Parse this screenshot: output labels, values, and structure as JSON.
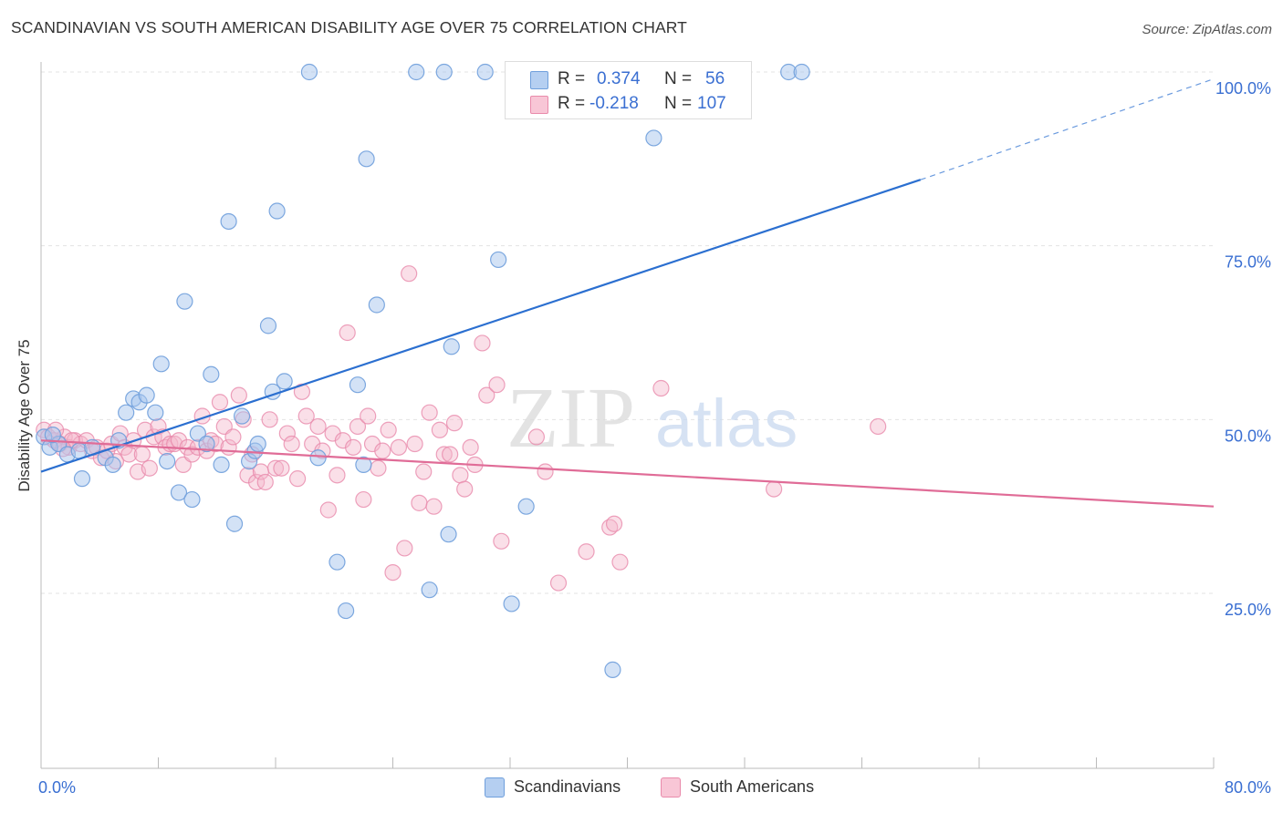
{
  "header": {
    "title": "SCANDINAVIAN VS SOUTH AMERICAN DISABILITY AGE OVER 75 CORRELATION CHART",
    "source": "Source: ZipAtlas.com"
  },
  "watermark": {
    "part1": "ZIP",
    "part2": "atlas"
  },
  "legend_top": {
    "rows": [
      {
        "r_label": "R =",
        "r_value": "0.374",
        "n_label": "N =",
        "n_value": "56"
      },
      {
        "r_label": "R =",
        "r_value": "-0.218",
        "n_label": "N =",
        "n_value": "107"
      }
    ]
  },
  "legend_bottom": {
    "items": [
      "Scandinavians",
      "South Americans"
    ]
  },
  "colors": {
    "blue_fill": "#a8c6ee",
    "blue_stroke": "#6f9fdc",
    "blue_line": "#2b6fd0",
    "pink_fill": "#f5b8cc",
    "pink_stroke": "#e98aab",
    "pink_line": "#e06c97",
    "grid": "#e3e3e3",
    "axis_tick_text": "#3a6fd2"
  },
  "chart_data": {
    "type": "scatter",
    "title": "SCANDINAVIAN VS SOUTH AMERICAN DISABILITY AGE OVER 75 CORRELATION CHART",
    "xlabel": "",
    "ylabel": "Disability Age Over 75",
    "xlim": [
      0,
      80
    ],
    "ylim": [
      0,
      102
    ],
    "x_tick_labels": [
      "0.0%",
      "80.0%"
    ],
    "y_ticks": [
      25,
      50,
      75,
      100
    ],
    "y_tick_labels": [
      "25.0%",
      "50.0%",
      "75.0%",
      "100.0%"
    ],
    "grid": true,
    "legend_placement": "top-center",
    "series": [
      {
        "name": "Scandinavians",
        "r": 0.374,
        "n": 56,
        "trend": {
          "x0": 0,
          "y0": 42.5,
          "x1": 60,
          "y1": 84.5,
          "dashed_to_x": 80,
          "dashed_to_y": 99
        },
        "points": [
          [
            0.2,
            47.5
          ],
          [
            0.6,
            46
          ],
          [
            1.2,
            46.5
          ],
          [
            1.8,
            45
          ],
          [
            2.6,
            45.5
          ],
          [
            2.8,
            41.5
          ],
          [
            3.5,
            46
          ],
          [
            4.4,
            44.5
          ],
          [
            4.9,
            43.5
          ],
          [
            5.3,
            47
          ],
          [
            5.8,
            51
          ],
          [
            6.3,
            53
          ],
          [
            6.7,
            52.5
          ],
          [
            7.2,
            53.5
          ],
          [
            7.8,
            51
          ],
          [
            8.2,
            58
          ],
          [
            8.6,
            44
          ],
          [
            9.4,
            39.5
          ],
          [
            9.8,
            67
          ],
          [
            10.3,
            38.5
          ],
          [
            10.7,
            48
          ],
          [
            11.3,
            46.5
          ],
          [
            11.6,
            56.5
          ],
          [
            12.3,
            43.5
          ],
          [
            12.8,
            78.5
          ],
          [
            13.2,
            35
          ],
          [
            13.7,
            50.5
          ],
          [
            14.2,
            44
          ],
          [
            14.6,
            45.5
          ],
          [
            14.8,
            46.5
          ],
          [
            15.5,
            63.5
          ],
          [
            15.8,
            54
          ],
          [
            16.1,
            80
          ],
          [
            16.6,
            55.5
          ],
          [
            18.3,
            100
          ],
          [
            18.9,
            44.5
          ],
          [
            20.2,
            29.5
          ],
          [
            20.8,
            22.5
          ],
          [
            21.6,
            55
          ],
          [
            22.0,
            43.5
          ],
          [
            22.2,
            87.5
          ],
          [
            22.9,
            66.5
          ],
          [
            25.6,
            100
          ],
          [
            26.5,
            25.5
          ],
          [
            27.5,
            100
          ],
          [
            27.8,
            33.5
          ],
          [
            28.0,
            60.5
          ],
          [
            30.3,
            100
          ],
          [
            31.2,
            73
          ],
          [
            32.1,
            23.5
          ],
          [
            33.1,
            37.5
          ],
          [
            39.0,
            14
          ],
          [
            41.8,
            90.5
          ],
          [
            51.0,
            100
          ],
          [
            51.9,
            100
          ],
          [
            0.8,
            47.8
          ]
        ]
      },
      {
        "name": "South Americans",
        "r": -0.218,
        "n": 107,
        "trend": {
          "x0": 0,
          "y0": 47,
          "x1": 80,
          "y1": 37.5
        },
        "points": [
          [
            0.2,
            48.5
          ],
          [
            0.5,
            47.5
          ],
          [
            0.9,
            47
          ],
          [
            1.3,
            46.5
          ],
          [
            1.6,
            47.5
          ],
          [
            1.9,
            46
          ],
          [
            2.3,
            47
          ],
          [
            2.7,
            46.5
          ],
          [
            3.1,
            47
          ],
          [
            3.5,
            45.5
          ],
          [
            3.8,
            46
          ],
          [
            4.1,
            44.5
          ],
          [
            4.5,
            45.5
          ],
          [
            4.8,
            46.5
          ],
          [
            5.1,
            44
          ],
          [
            5.4,
            48
          ],
          [
            5.7,
            46
          ],
          [
            6.0,
            45
          ],
          [
            6.3,
            47
          ],
          [
            6.6,
            42.5
          ],
          [
            6.9,
            45
          ],
          [
            7.1,
            48.5
          ],
          [
            7.4,
            43
          ],
          [
            7.7,
            47.5
          ],
          [
            8.0,
            49
          ],
          [
            8.3,
            47.5
          ],
          [
            8.5,
            46
          ],
          [
            8.8,
            46.5
          ],
          [
            9.1,
            46.5
          ],
          [
            9.4,
            47
          ],
          [
            9.7,
            43.5
          ],
          [
            10.0,
            46
          ],
          [
            10.3,
            45
          ],
          [
            10.7,
            46
          ],
          [
            11.0,
            50.5
          ],
          [
            11.3,
            45.5
          ],
          [
            11.6,
            47
          ],
          [
            11.9,
            46.5
          ],
          [
            12.2,
            52.5
          ],
          [
            12.5,
            49
          ],
          [
            12.8,
            46
          ],
          [
            13.1,
            47.5
          ],
          [
            13.5,
            53.5
          ],
          [
            13.8,
            50
          ],
          [
            14.1,
            42
          ],
          [
            14.4,
            45
          ],
          [
            14.7,
            41
          ],
          [
            15.0,
            42.5
          ],
          [
            15.3,
            41
          ],
          [
            15.6,
            50
          ],
          [
            16.0,
            43
          ],
          [
            16.4,
            43
          ],
          [
            16.8,
            48
          ],
          [
            17.1,
            46.5
          ],
          [
            17.5,
            41.5
          ],
          [
            17.8,
            54
          ],
          [
            18.1,
            50.5
          ],
          [
            18.5,
            46.5
          ],
          [
            18.9,
            49
          ],
          [
            19.2,
            45.5
          ],
          [
            19.6,
            37
          ],
          [
            19.9,
            48
          ],
          [
            20.2,
            42
          ],
          [
            20.6,
            47
          ],
          [
            20.9,
            62.5
          ],
          [
            21.3,
            46
          ],
          [
            21.6,
            49
          ],
          [
            22.0,
            38.5
          ],
          [
            22.3,
            50.5
          ],
          [
            22.6,
            46.5
          ],
          [
            23.0,
            43
          ],
          [
            23.3,
            45.5
          ],
          [
            23.7,
            48.5
          ],
          [
            24.0,
            28
          ],
          [
            24.4,
            46
          ],
          [
            24.8,
            31.5
          ],
          [
            25.1,
            71
          ],
          [
            25.5,
            46.5
          ],
          [
            25.8,
            38
          ],
          [
            26.1,
            42.5
          ],
          [
            26.5,
            51
          ],
          [
            26.8,
            37.5
          ],
          [
            27.2,
            48.5
          ],
          [
            27.5,
            45
          ],
          [
            27.9,
            45
          ],
          [
            28.2,
            49.5
          ],
          [
            28.6,
            42
          ],
          [
            28.9,
            40
          ],
          [
            29.3,
            46
          ],
          [
            29.6,
            43.5
          ],
          [
            30.1,
            61
          ],
          [
            30.4,
            53.5
          ],
          [
            31.1,
            55
          ],
          [
            31.4,
            32.5
          ],
          [
            33.8,
            47.5
          ],
          [
            34.4,
            42.5
          ],
          [
            35.3,
            26.5
          ],
          [
            37.2,
            31
          ],
          [
            38.8,
            34.5
          ],
          [
            39.1,
            35
          ],
          [
            39.5,
            29.5
          ],
          [
            42.3,
            54.5
          ],
          [
            50.0,
            40
          ],
          [
            57.1,
            49
          ],
          [
            1.0,
            48.5
          ],
          [
            2.1,
            47
          ],
          [
            1.5,
            45.8
          ]
        ]
      }
    ]
  }
}
